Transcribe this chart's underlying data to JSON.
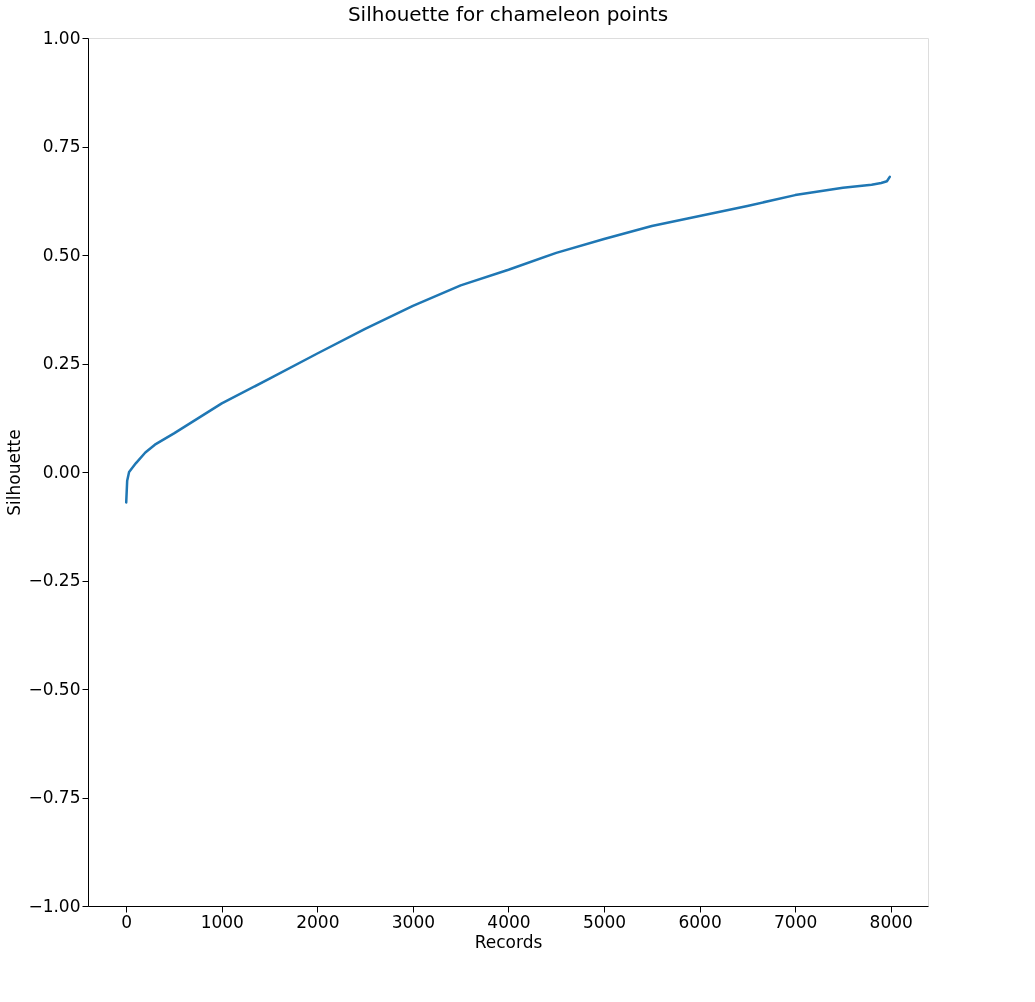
{
  "chart_data": {
    "type": "line",
    "title": "Silhouette for chameleon points",
    "xlabel": "Records",
    "ylabel": "Silhouette",
    "x": [
      0,
      10,
      30,
      100,
      200,
      300,
      500,
      1000,
      1500,
      2000,
      2500,
      3000,
      3500,
      4000,
      4500,
      5000,
      5500,
      6000,
      6500,
      7000,
      7500,
      7800,
      7900,
      7960,
      7990
    ],
    "series": [
      {
        "color": "#1f77b4",
        "values": [
          -0.07,
          -0.02,
          0.0,
          0.02,
          0.045,
          0.063,
          0.089,
          0.158,
          0.215,
          0.273,
          0.33,
          0.383,
          0.43,
          0.466,
          0.505,
          0.537,
          0.567,
          0.59,
          0.613,
          0.638,
          0.655,
          0.662,
          0.666,
          0.67,
          0.68
        ]
      }
    ],
    "xlim": [
      -400,
      8390
    ],
    "xticks": [
      0,
      1000,
      2000,
      3000,
      4000,
      5000,
      6000,
      7000,
      8000
    ],
    "ylim": [
      -1.0,
      1.0
    ],
    "yticks": [
      {
        "value": -1.0,
        "label": "−1.00"
      },
      {
        "value": -0.75,
        "label": "−0.75"
      },
      {
        "value": -0.5,
        "label": "−0.50"
      },
      {
        "value": -0.25,
        "label": "−0.25"
      },
      {
        "value": 0.0,
        "label": "0.00"
      },
      {
        "value": 0.25,
        "label": "0.25"
      },
      {
        "value": 0.5,
        "label": "0.50"
      },
      {
        "value": 0.75,
        "label": "0.75"
      },
      {
        "value": 1.0,
        "label": "1.00"
      }
    ],
    "grid": false,
    "line_style": "solid"
  }
}
